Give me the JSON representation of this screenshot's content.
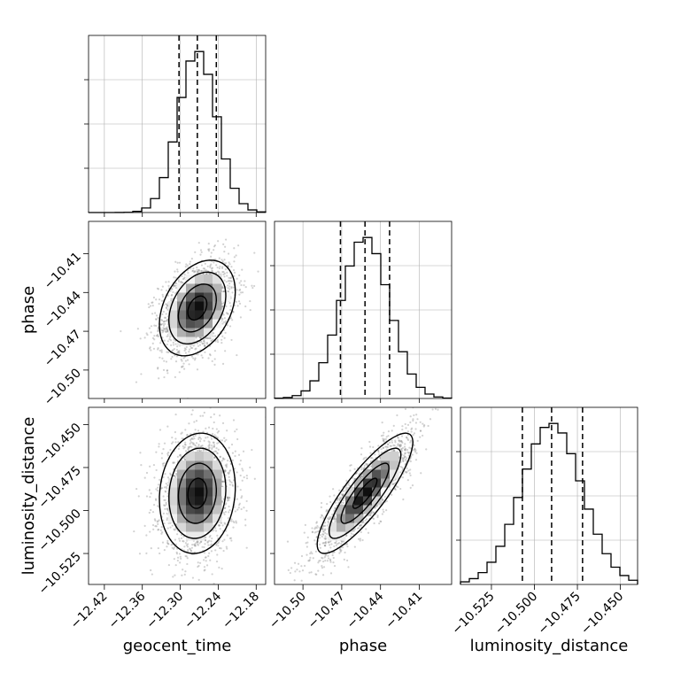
{
  "chart_data": {
    "type": "corner",
    "parameters": [
      {
        "name": "geocent_time",
        "mean": -12.273,
        "sd": 0.03,
        "quantiles": [
          -12.302,
          -12.273,
          -12.243
        ],
        "range": [
          -12.445,
          -12.165
        ],
        "ticks": [
          -12.42,
          -12.36,
          -12.3,
          -12.24,
          -12.18
        ]
      },
      {
        "name": "phase",
        "mean": -10.452,
        "sd": 0.0185,
        "quantiles": [
          -10.471,
          -10.452,
          -10.433
        ],
        "range": [
          -10.522,
          -10.385
        ],
        "ticks": [
          -10.5,
          -10.47,
          -10.44,
          -10.41
        ]
      },
      {
        "name": "luminosity_distance",
        "mean": -10.49,
        "sd": 0.0175,
        "quantiles": [
          -10.507,
          -10.49,
          -10.472
        ],
        "range": [
          -10.543,
          -10.44
        ],
        "ticks": [
          -10.525,
          -10.5,
          -10.475,
          -10.45
        ]
      }
    ],
    "tick_labels": {
      "geocent_time": [
        "−12.42",
        "−12.36",
        "−12.30",
        "−12.24",
        "−12.18"
      ],
      "phase": [
        "−10.50",
        "−10.47",
        "−10.44",
        "−10.41"
      ],
      "luminosity_distance": [
        "−10.525",
        "−10.500",
        "−10.475",
        "−10.450"
      ]
    },
    "correlations": {
      "phase|geocent_time": 0.35,
      "luminosity_distance|geocent_time": 0.1,
      "luminosity_distance|phase": 0.85
    },
    "quantile_levels": [
      0.16,
      0.5,
      0.84
    ],
    "contour_sigma_levels": [
      0.5,
      1.0,
      1.5,
      2.0
    ],
    "histogram_bins": 20,
    "grid": true,
    "colors": {
      "line": "#000000",
      "grid": "#b0b0b0",
      "points": "#7f7f7f"
    }
  }
}
